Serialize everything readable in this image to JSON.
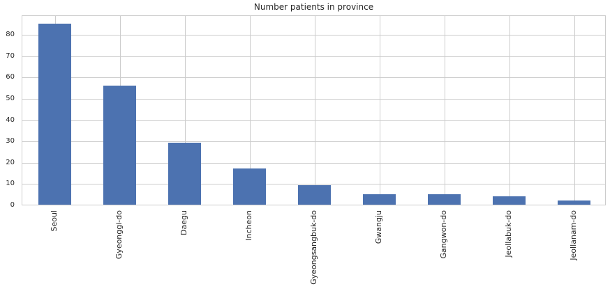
{
  "chart_data": {
    "type": "bar",
    "title": "Number patients in province",
    "categories": [
      "Seoul",
      "Gyeonggi-do",
      "Daegu",
      "Incheon",
      "Gyeongsangbuk-do",
      "Gwangju",
      "Gangwon-do",
      "Jeollabuk-do",
      "Jeollanam-do"
    ],
    "values": [
      85,
      56,
      29,
      17,
      9,
      5,
      5,
      4,
      2
    ],
    "xlabel": "",
    "ylabel": "",
    "yticks": [
      0,
      10,
      20,
      30,
      40,
      50,
      60,
      70,
      80
    ],
    "ylim": [
      0,
      89.25
    ],
    "grid": true,
    "legend": "none",
    "x_tick_label_rotation": 90,
    "colors": {
      "bar": "#4c72b0",
      "grid": "#cccccc",
      "spine": "#cccccc",
      "text": "#262626",
      "background": "#ffffff"
    }
  }
}
